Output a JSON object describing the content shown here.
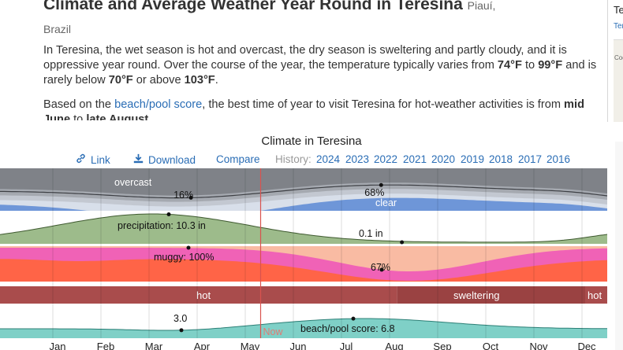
{
  "header": {
    "title": "Climate and Average Weather Year Round in Teresina",
    "location": "Piauí,",
    "country": "Brazil"
  },
  "intro": {
    "p1_a": "In Teresina, the wet season is hot and overcast, the dry season is sweltering and partly cloudy, and it is oppressive year round. Over the course of the year, the temperature typically varies from ",
    "temp_low": "74°F",
    "p1_b": " to ",
    "temp_high": "99°F",
    "p1_c": " and is rarely below ",
    "temp_rare_low": "70°F",
    "p1_d": " or above ",
    "temp_rare_high": "103°F",
    "p1_e": ".",
    "p2_a": "Based on the ",
    "p2_link": "beach/pool score",
    "p2_b": ", the best time of year to visit Teresina for hot-weather activities is from ",
    "p2_from": "mid June",
    "p2_c": " to ",
    "p2_to": "late August",
    "p2_d": "."
  },
  "sidebar": {
    "title": "Te",
    "link": "Ter",
    "map_label": "Cod"
  },
  "chart_section": {
    "title": "Climate in Teresina",
    "tools": {
      "link": "Link",
      "download": "Download",
      "compare": "Compare"
    },
    "history_label": "History:",
    "years": [
      "2024",
      "2023",
      "2022",
      "2021",
      "2020",
      "2019",
      "2018",
      "2017",
      "2016"
    ]
  },
  "chart_data": {
    "type": "area",
    "months": [
      "Jan",
      "Feb",
      "Mar",
      "Apr",
      "May",
      "Jun",
      "Jul",
      "Aug",
      "Sep",
      "Oct",
      "Nov",
      "Dec"
    ],
    "now_label": "Now",
    "now_month": 4.5,
    "clouds": {
      "label_overcast": "overcast",
      "label_clear": "clear",
      "min_label": "16%",
      "min_value": 16,
      "min_month": 3.1,
      "max_label": "68%",
      "max_value": 68,
      "max_month": 7.3
    },
    "precipitation": {
      "max_label": "precipitation: 10.3 in",
      "max_value": 10.3,
      "max_month": 2.8,
      "min_label": "0.1 in",
      "min_value": 0.1,
      "min_month": 7.65
    },
    "humidity": {
      "max_label": "muggy: 100%",
      "max_value": 100,
      "max_month": 3.0,
      "min_label": "67%",
      "min_value": 67,
      "min_month": 7.8
    },
    "temperature_bands": [
      {
        "label": "hot",
        "from_month": 0,
        "to_month": 7.65
      },
      {
        "label": "sweltering",
        "from_month": 7.65,
        "to_month": 12
      },
      {
        "label": "hot",
        "from_month": 12,
        "to_month": 12
      }
    ],
    "beach": {
      "min_label": "3.0",
      "min_value": 3.0,
      "min_month": 3.1,
      "max_label": "beach/pool score: 6.8",
      "max_value": 6.8,
      "max_month": 7.2
    },
    "colors": {
      "overcast": "#7f8288",
      "mostly_cloudy": "#a5a9b0",
      "partly_cloudy": "#c3c8d1",
      "mostly_clear": "#d8dfea",
      "clear": "#6e96d8",
      "precip": "#9dbb8b",
      "muggy": "#f062b6",
      "oppressive": "#ff6447",
      "humid": "#f9bba3",
      "hot": "#a94c4c",
      "sweltering": "#9a4242",
      "beach": "#7fd0c7",
      "now_line": "#d9534f"
    }
  }
}
